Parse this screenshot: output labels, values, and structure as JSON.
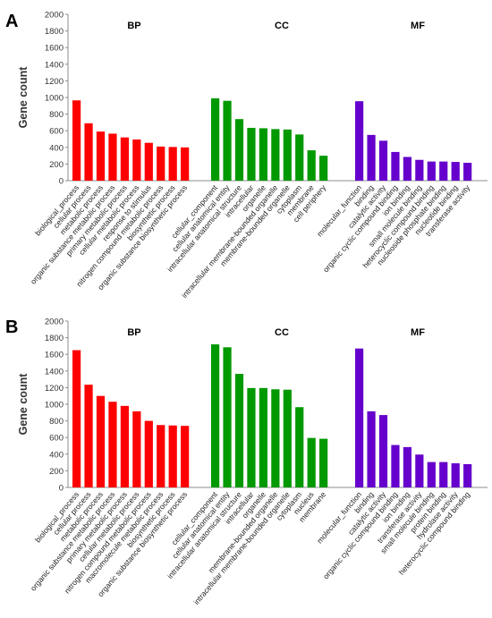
{
  "chart_data": [
    {
      "panel_label": "A",
      "type": "bar",
      "ylabel": "Gene count",
      "ylim": [
        0,
        2000
      ],
      "yticks": [
        0,
        200,
        400,
        600,
        800,
        1000,
        1200,
        1400,
        1600,
        1800,
        2000
      ],
      "grid": false,
      "groups": [
        {
          "name": "BP",
          "color": "#ff0000",
          "categories": [
            "biological_process",
            "cellular process",
            "metabolic process",
            "organic substance metabolic process",
            "primary metabolic process",
            "cellular metabolic process",
            "response to stimulus",
            "nitrogen compound metabolic process",
            "biosynthetic process",
            "organic substance biosynthetic process"
          ],
          "values": [
            965,
            690,
            590,
            565,
            520,
            495,
            455,
            410,
            405,
            400
          ]
        },
        {
          "name": "CC",
          "color": "#009900",
          "categories": [
            "cellular_component",
            "cellular anatomical entity",
            "intracellular anatomical structure",
            "intracellular",
            "organelle",
            "intracellular membrane-bounded organelle",
            "membrane-bounded organelle",
            "cytoplasm",
            "membrane",
            "cell periphery"
          ],
          "values": [
            990,
            960,
            740,
            635,
            630,
            620,
            615,
            555,
            365,
            300
          ]
        },
        {
          "name": "MF",
          "color": "#6600cc",
          "categories": [
            "molecular_function",
            "binding",
            "catalytic activity",
            "organic cyclic compound binding",
            "ion binding",
            "small molecule binding",
            "heterocyclic compound binding",
            "nucleoside phosphate binding",
            "nucleotide binding",
            "transferase activity"
          ],
          "values": [
            955,
            550,
            480,
            345,
            285,
            250,
            230,
            230,
            225,
            215
          ]
        }
      ]
    },
    {
      "panel_label": "B",
      "type": "bar",
      "ylabel": "Gene count",
      "ylim": [
        0,
        2000
      ],
      "yticks": [
        0,
        200,
        400,
        600,
        800,
        1000,
        1200,
        1400,
        1600,
        1800,
        2000
      ],
      "grid": false,
      "groups": [
        {
          "name": "BP",
          "color": "#ff0000",
          "categories": [
            "biological_process",
            "cellular process",
            "metabolic process",
            "organic substance metabolic process",
            "primary metabolic process",
            "cellular metabolic process",
            "nitrogen compound metabolic process",
            "macromolecule metabolic process",
            "biosynthetic process",
            "organic substance biosynthetic process"
          ],
          "values": [
            1650,
            1235,
            1100,
            1030,
            980,
            915,
            800,
            750,
            745,
            740
          ]
        },
        {
          "name": "CC",
          "color": "#009900",
          "categories": [
            "cellular_component",
            "cellular anatomical entity",
            "intracellular anatomical structure",
            "intracellular",
            "organelle",
            "membrane-bounded organelle",
            "intracellular membrane-bounded organelle",
            "cytoplasm",
            "nucleus",
            "membrane"
          ],
          "values": [
            1720,
            1685,
            1365,
            1195,
            1195,
            1180,
            1175,
            965,
            595,
            585
          ]
        },
        {
          "name": "MF",
          "color": "#6600cc",
          "categories": [
            "molecular_function",
            "binding",
            "catalytic activity",
            "organic cyclic compound binding",
            "ion binding",
            "transferase activity",
            "small molecule binding",
            "protein binding",
            "hydrolase activity",
            "heterocyclic compound binding"
          ],
          "values": [
            1670,
            915,
            870,
            510,
            485,
            395,
            305,
            305,
            290,
            280
          ]
        }
      ]
    }
  ]
}
